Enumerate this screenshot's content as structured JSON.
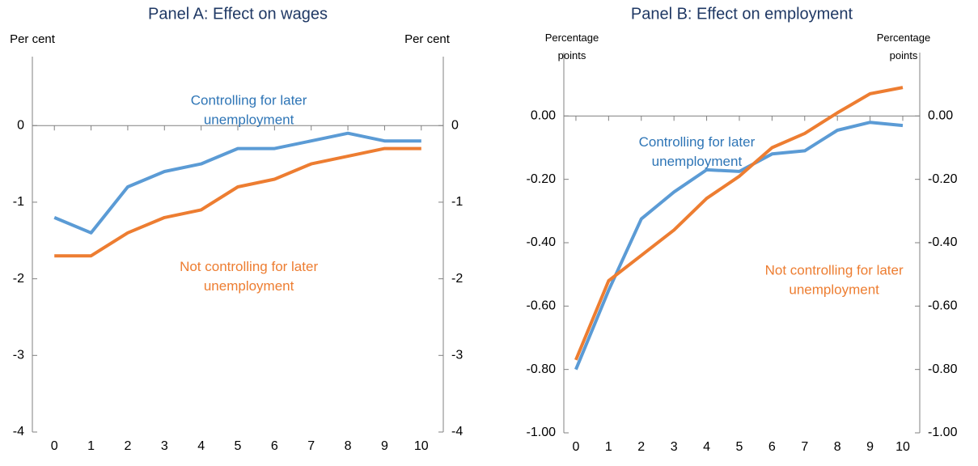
{
  "chart_data": [
    {
      "type": "line",
      "title": "Panel A: Effect on wages",
      "y_label": "Per cent",
      "y2_label": "Per cent",
      "x": [
        0,
        1,
        2,
        3,
        4,
        5,
        6,
        7,
        8,
        9,
        10
      ],
      "xlim": [
        -0.6,
        10.6
      ],
      "xticks": [
        0,
        1,
        2,
        3,
        4,
        5,
        6,
        7,
        8,
        9,
        10
      ],
      "ylim": [
        -4,
        0.9
      ],
      "yticks": [
        0,
        -1,
        -2,
        -3,
        -4
      ],
      "series": [
        {
          "name": "Controlling for later unemployment",
          "color": "#5b9bd5",
          "values": [
            -1.2,
            -1.4,
            -0.8,
            -0.6,
            -0.5,
            -0.3,
            -0.3,
            -0.2,
            -0.1,
            -0.2,
            -0.2
          ]
        },
        {
          "name": "Not controlling for later unemployment",
          "color": "#ed7d31",
          "values": [
            -1.7,
            -1.7,
            -1.4,
            -1.2,
            -1.1,
            -0.8,
            -0.7,
            -0.5,
            -0.4,
            -0.3,
            -0.3
          ]
        }
      ],
      "annotations": [
        {
          "lines": [
            "Controlling for later",
            "unemployment"
          ],
          "color": "#2e75b6",
          "x": 5.3,
          "y": 0.32
        },
        {
          "lines": [
            "Not controlling for later",
            "unemployment"
          ],
          "color": "#ed7d31",
          "x": 5.3,
          "y": -1.85
        }
      ]
    },
    {
      "type": "line",
      "title": "Panel B: Effect on employment",
      "y_label": "Percentage points",
      "y2_label": "Percentage points",
      "x": [
        0,
        1,
        2,
        3,
        4,
        5,
        6,
        7,
        8,
        9,
        10
      ],
      "xlim": [
        -0.37,
        10.52
      ],
      "xticks": [
        0,
        1,
        2,
        3,
        4,
        5,
        6,
        7,
        8,
        9,
        10
      ],
      "ylim": [
        -1,
        0.2
      ],
      "yticks": [
        {
          "value": 0,
          "label": "0.00"
        },
        {
          "value": -0.2,
          "label": "-0.20"
        },
        {
          "value": -0.4,
          "label": "-0.40"
        },
        {
          "value": -0.6,
          "label": "-0.60"
        },
        {
          "value": -0.8,
          "label": "-0.80"
        },
        {
          "value": -1,
          "label": "-1.00"
        }
      ],
      "series": [
        {
          "name": "Controlling for later unemployment",
          "color": "#5b9bd5",
          "values": [
            -0.8,
            -0.55,
            -0.325,
            -0.24,
            -0.17,
            -0.175,
            -0.12,
            -0.11,
            -0.045,
            -0.02,
            -0.03
          ]
        },
        {
          "name": "Not controlling for later unemployment",
          "color": "#ed7d31",
          "values": [
            -0.77,
            -0.52,
            -0.44,
            -0.36,
            -0.26,
            -0.19,
            -0.1,
            -0.055,
            0.01,
            0.07,
            0.09
          ]
        }
      ],
      "annotations": [
        {
          "lines": [
            "Controlling for later",
            "unemployment"
          ],
          "color": "#2e75b6",
          "x": 3.7,
          "y": -0.085
        },
        {
          "lines": [
            "Not controlling for later",
            "unemployment"
          ],
          "color": "#ed7d31",
          "x": 7.9,
          "y": -0.49
        }
      ]
    }
  ]
}
